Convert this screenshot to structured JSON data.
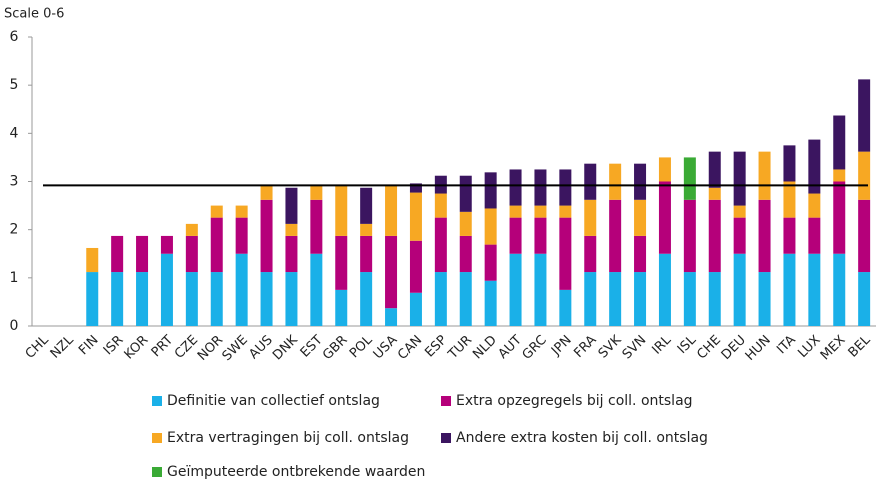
{
  "chart_data": {
    "type": "stacked_bar",
    "title": "Scale 0-6",
    "categories": [
      "CHL",
      "NZL",
      "FIN",
      "ISR",
      "KOR",
      "PRT",
      "CZE",
      "NOR",
      "SWE",
      "AUS",
      "DNK",
      "EST",
      "GBR",
      "POL",
      "USA",
      "CAN",
      "ESP",
      "TUR",
      "NLD",
      "AUT",
      "GRC",
      "JPN",
      "FRA",
      "SVK",
      "SVN",
      "IRL",
      "ISL",
      "CHE",
      "DEU",
      "HUN",
      "ITA",
      "LUX",
      "MEX",
      "BEL"
    ],
    "series": [
      {
        "name": "Definitie van collectief ontslag",
        "color": "#1ab0e8",
        "values": [
          0,
          0,
          1.12,
          1.12,
          1.12,
          1.5,
          1.12,
          1.12,
          1.5,
          1.12,
          1.12,
          1.5,
          0.75,
          1.12,
          0.37,
          0.69,
          1.12,
          1.12,
          0.94,
          1.5,
          1.5,
          0.75,
          1.12,
          1.12,
          1.12,
          1.5,
          1.12,
          1.12,
          1.5,
          1.12,
          1.5,
          1.5,
          1.5,
          1.12
        ]
      },
      {
        "name": "Extra opzegregels bij coll. ontslag",
        "color": "#b5007a",
        "values": [
          0,
          0,
          0,
          0.75,
          0.75,
          0.37,
          0.75,
          1.13,
          0.75,
          1.5,
          0.75,
          1.12,
          1.12,
          0.75,
          1.5,
          1.08,
          1.13,
          0.75,
          0.75,
          0.75,
          0.75,
          1.5,
          0.75,
          1.5,
          0.75,
          1.5,
          1.5,
          1.5,
          0.75,
          1.5,
          0.75,
          0.75,
          1.5,
          1.5
        ]
      },
      {
        "name": "Extra vertragingen  bij coll. ontslag",
        "color": "#f7a823",
        "values": [
          0,
          0,
          0.5,
          0,
          0,
          0,
          0.25,
          0.25,
          0.25,
          0.3,
          0.25,
          0.3,
          1.05,
          0.25,
          1.05,
          1.0,
          0.5,
          0.5,
          0.75,
          0.25,
          0.25,
          0.25,
          0.75,
          0.75,
          0.75,
          0.5,
          0,
          0.25,
          0.25,
          1.0,
          0.75,
          0.5,
          0.25,
          1.0
        ]
      },
      {
        "name": "Andere extra kosten  bij coll. ontslag",
        "color": "#3b1560",
        "values": [
          0,
          0,
          0,
          0,
          0,
          0,
          0,
          0,
          0,
          0,
          0.75,
          0,
          0,
          0.75,
          0,
          0.19,
          0.37,
          0.75,
          0.75,
          0.75,
          0.75,
          0.75,
          0.75,
          0,
          0.75,
          0,
          0,
          0.75,
          1.12,
          0,
          0.75,
          1.12,
          1.12,
          1.5
        ]
      },
      {
        "name": "Geïmputeerde ontbrekende waarden",
        "color": "#3aaa35",
        "values": [
          0,
          0,
          0,
          0,
          0,
          0,
          0,
          0,
          0,
          0,
          0,
          0,
          0,
          0,
          0,
          0,
          0,
          0,
          0,
          0,
          0,
          0,
          0,
          0,
          0,
          0,
          0.88,
          0,
          0,
          0,
          0,
          0,
          0,
          0
        ]
      }
    ],
    "reference_line": 2.92,
    "ylim": [
      0,
      6
    ],
    "yticks": [
      0,
      1,
      2,
      3,
      4,
      5,
      6
    ]
  }
}
